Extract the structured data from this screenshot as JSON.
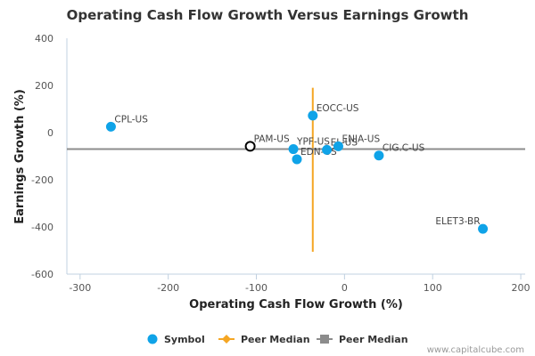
{
  "chart_data": {
    "type": "scatter",
    "title": "Operating Cash Flow Growth Versus Earnings Growth",
    "xlabel": "Operating Cash Flow Growth (%)",
    "ylabel": "Earnings Growth (%)",
    "xlim": [
      -315,
      205
    ],
    "ylim": [
      -600,
      400
    ],
    "xticks": [
      -300,
      -200,
      -100,
      0,
      100,
      200
    ],
    "yticks": [
      -600,
      -400,
      -200,
      0,
      200,
      400
    ],
    "grid": false,
    "legend_position": "bottom",
    "colors": {
      "symbol": "#0fa3e8",
      "highlight_outline": "#000000",
      "peer_median_ocf": "#f5a623",
      "peer_median_eg": "#8c8c8c"
    },
    "points": [
      {
        "label": "CPL-US",
        "x": -265,
        "y": 25
      },
      {
        "label": "PAM-US",
        "x": -107,
        "y": -58,
        "highlight": true
      },
      {
        "label": "YPF-US",
        "x": -58,
        "y": -70
      },
      {
        "label": "EDN-US",
        "x": -54,
        "y": -113
      },
      {
        "label": "EOCC-US",
        "x": -36,
        "y": 72
      },
      {
        "label": "EL-US",
        "x": -20,
        "y": -73
      },
      {
        "label": "ENIA-US",
        "x": -7,
        "y": -58
      },
      {
        "label": "CIG.C-US",
        "x": 39,
        "y": -97
      },
      {
        "label": "ELET3-BR",
        "x": 157,
        "y": -408
      }
    ],
    "peer_median_x": -36,
    "peer_median_x_range": [
      -505,
      190
    ],
    "peer_median_y": -70,
    "legend": [
      {
        "label": "Symbol",
        "kind": "circle"
      },
      {
        "label": "Peer Median",
        "kind": "diamond-line"
      },
      {
        "label": "Peer Median",
        "kind": "square-line"
      }
    ]
  },
  "credit": "www.capitalcube.com"
}
